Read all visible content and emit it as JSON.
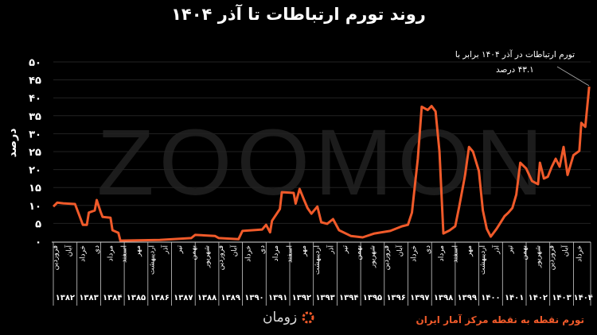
{
  "chart_data": {
    "type": "line",
    "title": "روند تورم ارتباطات تا آذر ۱۴۰۴",
    "ylabel": "درصد",
    "xlabel": "",
    "ylim": [
      0,
      50
    ],
    "yticks": [
      "۰",
      "۵",
      "۱۰",
      "۱۵",
      "۲۰",
      "۲۵",
      "۳۰",
      "۳۵",
      "۴۰",
      "۴۵",
      "۵۰"
    ],
    "grid": "horizontal",
    "watermark": "ZOOMON",
    "line_color": "#f05a2a",
    "year_labels": [
      "۱۳۸۲",
      "۱۳۸۳",
      "۱۳۸۴",
      "۱۳۸۵",
      "۱۳۸۶",
      "۱۳۸۷",
      "۱۳۸۸",
      "۱۳۸۹",
      "۱۳۹۰",
      "۱۳۹۱",
      "۱۳۹۲",
      "۱۳۹۳",
      "۱۳۹۴",
      "۱۳۹۵",
      "۱۳۹۶",
      "۱۳۹۷",
      "۱۳۹۸",
      "۱۳۹۹",
      "۱۴۰۰",
      "۱۴۰۱",
      "۱۴۰۲",
      "۱۴۰۳",
      "۱۴۰۴"
    ],
    "month_labels": [
      "فروردین",
      "آبان",
      "خرداد",
      "دی",
      "مرداد",
      "اسفند",
      "مهر",
      "اردیبهشت",
      "آذر",
      "تیر",
      "بهمن",
      "شهریور",
      "فروردین",
      "آبان",
      "خرداد",
      "دی",
      "مرداد",
      "اسفند",
      "مهر",
      "اردیبهشت",
      "آذر",
      "تیر",
      "بهمن",
      "شهریور",
      "فروردین",
      "آبان",
      "خرداد",
      "دی",
      "مرداد",
      "اسفند",
      "مهر",
      "اردیبهشت",
      "آذر",
      "تیر",
      "بهمن",
      "شهریور",
      "فروردین",
      "آبان",
      "خرداد"
    ],
    "series": [
      {
        "points": [
          [
            "1382/01",
            9.7
          ],
          [
            "1382/03",
            10.8
          ],
          [
            "1382/06",
            10.6
          ],
          [
            "1382/12",
            10.4
          ],
          [
            "1383/02",
            7.5
          ],
          [
            "1383/04",
            4.6
          ],
          [
            "1383/06",
            4.6
          ],
          [
            "1383/07",
            8
          ],
          [
            "1383/10",
            8.6
          ],
          [
            "1383/11",
            11.5
          ],
          [
            "1384/01",
            8.2
          ],
          [
            "1384/02",
            6.8
          ],
          [
            "1384/06",
            6.6
          ],
          [
            "1384/07",
            3.1
          ],
          [
            "1384/10",
            2.4
          ],
          [
            "1384/11",
            0.2
          ],
          [
            "1386/07",
            0.4
          ],
          [
            "1387/11",
            0.9
          ],
          [
            "1388/01",
            1.8
          ],
          [
            "1388/11",
            1.5
          ],
          [
            "1389/01",
            0.9
          ],
          [
            "1389/11",
            0.6
          ],
          [
            "1390/01",
            2.9
          ],
          [
            "1390/11",
            3.3
          ],
          [
            "1391/01",
            4.6
          ],
          [
            "1391/03",
            2.5
          ],
          [
            "1391/04",
            5.7
          ],
          [
            "1391/08",
            9
          ],
          [
            "1391/09",
            13.7
          ],
          [
            "1392/03",
            13.5
          ],
          [
            "1392/04",
            10.5
          ],
          [
            "1392/06",
            14.6
          ],
          [
            "1392/08",
            11.9
          ],
          [
            "1392/10",
            9.3
          ],
          [
            "1392/12",
            7.7
          ],
          [
            "1393/03",
            9.7
          ],
          [
            "1393/05",
            5.3
          ],
          [
            "1393/08",
            4.9
          ],
          [
            "1393/11",
            6.2
          ],
          [
            "1394/02",
            3.1
          ],
          [
            "1394/08",
            1.5
          ],
          [
            "1395/02",
            1.1
          ],
          [
            "1395/08",
            2.2
          ],
          [
            "1396/04",
            2.9
          ],
          [
            "1396/10",
            4.2
          ],
          [
            "1397/01",
            4.6
          ],
          [
            "1397/03",
            8
          ],
          [
            "1397/06",
            23
          ],
          [
            "1397/08",
            37.5
          ],
          [
            "1397/11",
            36.6
          ],
          [
            "1398/01",
            37.7
          ],
          [
            "1398/03",
            36.2
          ],
          [
            "1398/05",
            25
          ],
          [
            "1398/07",
            2.2
          ],
          [
            "1398/10",
            3
          ],
          [
            "1399/01",
            4.2
          ],
          [
            "1399/03",
            9.7
          ],
          [
            "1399/06",
            18.5
          ],
          [
            "1399/08",
            26.3
          ],
          [
            "1399/10",
            25
          ],
          [
            "1400/01",
            19.6
          ],
          [
            "1400/03",
            8.6
          ],
          [
            "1400/05",
            3.5
          ],
          [
            "1400/07",
            1.3
          ],
          [
            "1400/10",
            3.5
          ],
          [
            "1401/02",
            7
          ],
          [
            "1401/04",
            8
          ],
          [
            "1401/06",
            9.3
          ],
          [
            "1401/08",
            13
          ],
          [
            "1401/10",
            21.9
          ],
          [
            "1402/01",
            20.3
          ],
          [
            "1402/04",
            16.8
          ],
          [
            "1402/07",
            15.9
          ],
          [
            "1402/08",
            21.9
          ],
          [
            "1402/10",
            17.5
          ],
          [
            "1402/12",
            18
          ],
          [
            "1403/02",
            20.8
          ],
          [
            "1403/04",
            23
          ],
          [
            "1403/06",
            20.8
          ],
          [
            "1403/08",
            26.3
          ],
          [
            "1403/10",
            18.5
          ],
          [
            "1404/01",
            24
          ],
          [
            "1404/04",
            25.2
          ],
          [
            "1404/05",
            33
          ],
          [
            "1404/07",
            31.9
          ],
          [
            "1404/09",
            43.1
          ]
        ]
      }
    ],
    "annotation": {
      "line1": "تورم ارتباطات در آذر ۱۴۰۴ برابر با",
      "line2": "۴۳.۱ درصد"
    }
  },
  "footer": {
    "source": "تورم نقطه به نقطه مرکز آمار ایران",
    "logo": "زومان"
  }
}
